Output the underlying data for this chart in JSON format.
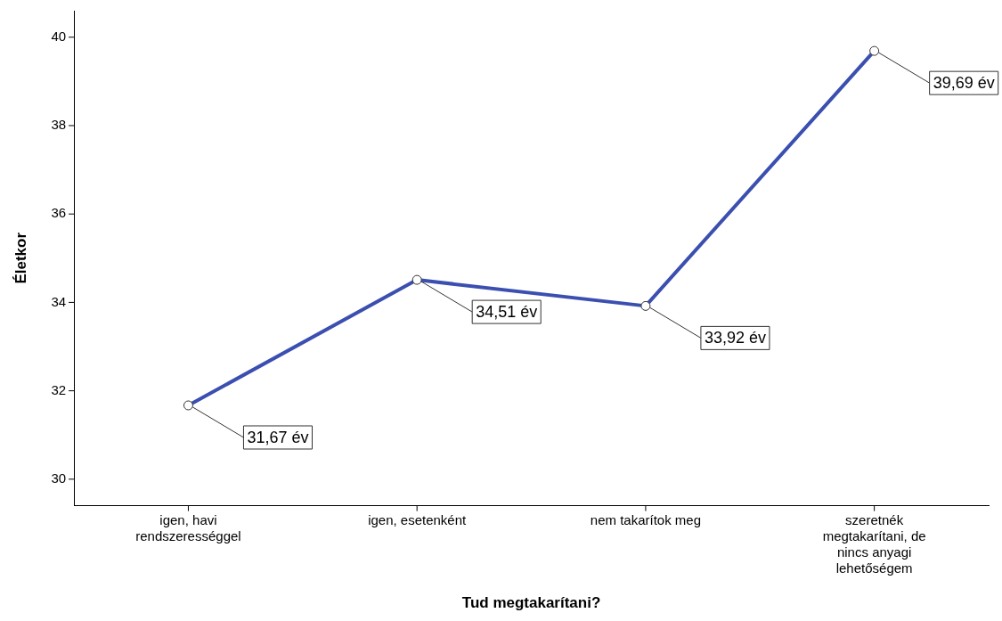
{
  "chart_data": {
    "type": "line",
    "xlabel": "Tud megtakarítani?",
    "ylabel": "Életkor",
    "categories": [
      "igen, havi rendszerességgel",
      "igen, esetenként",
      "nem takarítok meg",
      "szeretnék megtakarítani, de nincs anyagi lehetőségem"
    ],
    "series": [
      {
        "color": "#3b4fb0",
        "values": [
          31.67,
          34.51,
          33.92,
          39.69
        ],
        "value_labels": [
          "31,67 év",
          "34,51 év",
          "33,92 év",
          "39,69 év"
        ]
      }
    ],
    "ylim": [
      29.4,
      40.6
    ],
    "yticks": [
      30,
      32,
      34,
      36,
      38,
      40
    ],
    "grid": false,
    "legend": false,
    "marker": "circle",
    "line_style": "solid"
  }
}
